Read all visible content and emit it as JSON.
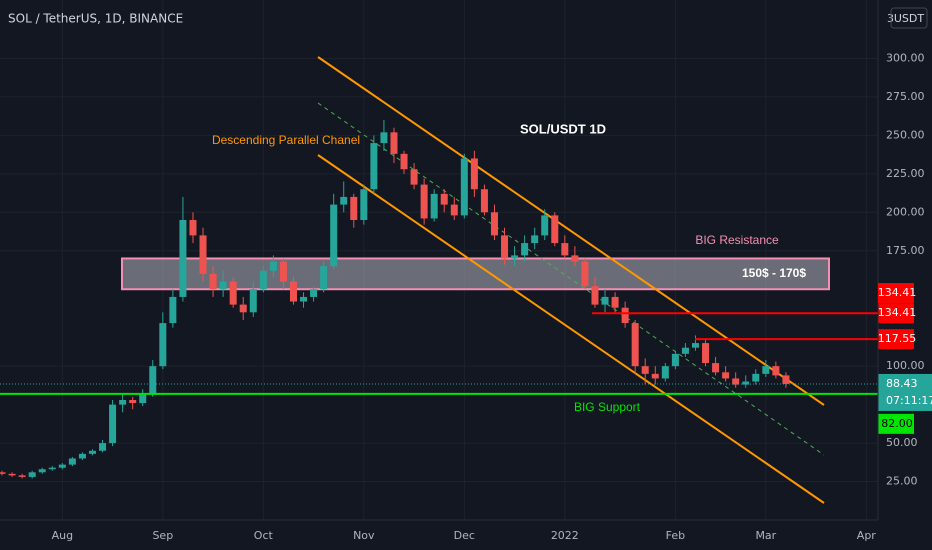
{
  "chart_data": {
    "type": "candlestick",
    "title": "SOL / TetherUS, 1D, BINANCE",
    "currency": "USDT",
    "scale_count": "3",
    "annotations": {
      "heading": "SOL/USDT 1D",
      "channel": "Descending  Parallel Chanel",
      "resistance": "BIG Resistance",
      "support": "BIG Support"
    },
    "zone": {
      "low": 150,
      "high": 170,
      "label": "150$ - 170$",
      "color": "#b2b5be",
      "border": "#f48fb1"
    },
    "levels": [
      {
        "value": 134.41,
        "label": "134.41",
        "color": "#ff0000"
      },
      {
        "value": 117.55,
        "label": "117.55",
        "color": "#ff0000"
      },
      {
        "value": 82,
        "label": "82.00",
        "color": "#00e600"
      }
    ],
    "price_badge": "134.41",
    "last_price": {
      "value": 88.43,
      "label": "88.43",
      "countdown": "07:11:17",
      "color": "#26a69a"
    },
    "up_color": "#26a69a",
    "down_color": "#ef5350",
    "categories": [
      null,
      null,
      null,
      null,
      null,
      null,
      "Aug",
      null,
      null,
      null,
      null,
      null,
      null,
      null,
      null,
      null,
      "Sep",
      null,
      null,
      null,
      null,
      null,
      null,
      null,
      null,
      null,
      "Oct",
      null,
      null,
      null,
      null,
      null,
      null,
      null,
      null,
      null,
      "Nov",
      null,
      null,
      null,
      null,
      null,
      null,
      null,
      null,
      null,
      "Dec",
      null,
      null,
      null,
      null,
      null,
      null,
      null,
      null,
      null,
      "2022",
      null,
      null,
      null,
      null,
      null,
      null,
      null,
      null,
      null,
      null,
      "Feb",
      null,
      null,
      null,
      null,
      null,
      null,
      null,
      null,
      "Mar",
      null,
      null,
      null,
      null,
      null,
      null,
      null,
      null,
      null,
      "Apr"
    ],
    "open": [
      31,
      30,
      29,
      28,
      31,
      33,
      34,
      36,
      40,
      43,
      45,
      50,
      75,
      78,
      76,
      82,
      100,
      128,
      145,
      195,
      185,
      160,
      150,
      155,
      140,
      135,
      150,
      162,
      168,
      155,
      142,
      145,
      150,
      165,
      205,
      210,
      195,
      215,
      245,
      252,
      238,
      228,
      218,
      196,
      212,
      205,
      198,
      235,
      215,
      200,
      185,
      170,
      172,
      180,
      185,
      198,
      180,
      172,
      168,
      152,
      140,
      145,
      138,
      128,
      100,
      95,
      92,
      100,
      108,
      112,
      115,
      102,
      96,
      92,
      88,
      90,
      95,
      100,
      94,
      null,
      null,
      null,
      null,
      null,
      null,
      null,
      null
    ],
    "high": [
      32,
      31,
      30,
      32,
      34,
      35,
      37,
      41,
      44,
      46,
      52,
      78,
      82,
      80,
      85,
      104,
      135,
      150,
      210,
      200,
      190,
      165,
      162,
      158,
      145,
      155,
      165,
      172,
      170,
      158,
      148,
      152,
      168,
      212,
      220,
      212,
      218,
      250,
      260,
      255,
      240,
      232,
      222,
      215,
      215,
      210,
      238,
      240,
      218,
      205,
      190,
      178,
      185,
      190,
      202,
      200,
      185,
      178,
      170,
      158,
      150,
      148,
      142,
      130,
      105,
      100,
      102,
      110,
      115,
      120,
      118,
      106,
      100,
      96,
      94,
      98,
      104,
      103,
      96,
      null,
      null,
      null,
      null,
      null,
      null,
      null,
      null
    ],
    "low": [
      29,
      28,
      27,
      27,
      30,
      32,
      33,
      35,
      39,
      42,
      44,
      48,
      70,
      72,
      74,
      80,
      98,
      125,
      142,
      180,
      155,
      145,
      145,
      138,
      130,
      132,
      148,
      158,
      150,
      140,
      138,
      142,
      148,
      163,
      200,
      190,
      192,
      212,
      240,
      232,
      225,
      215,
      192,
      194,
      200,
      195,
      196,
      210,
      198,
      182,
      166,
      165,
      168,
      176,
      182,
      178,
      170,
      165,
      150,
      138,
      135,
      135,
      125,
      95,
      88,
      88,
      90,
      98,
      106,
      110,
      100,
      94,
      90,
      86,
      86,
      88,
      93,
      92,
      86,
      null,
      null,
      null,
      null,
      null,
      null,
      null,
      null
    ],
    "close": [
      30,
      29,
      28,
      31,
      33,
      34,
      36,
      40,
      43,
      45,
      50,
      75,
      78,
      76,
      82,
      100,
      128,
      145,
      195,
      185,
      160,
      150,
      155,
      140,
      135,
      150,
      162,
      168,
      155,
      142,
      145,
      150,
      165,
      205,
      210,
      195,
      215,
      245,
      252,
      238,
      228,
      218,
      196,
      212,
      205,
      198,
      235,
      215,
      200,
      185,
      170,
      172,
      180,
      185,
      198,
      180,
      172,
      168,
      152,
      140,
      145,
      138,
      128,
      100,
      95,
      92,
      100,
      108,
      112,
      115,
      102,
      96,
      92,
      88,
      90,
      95,
      100,
      94,
      88.43,
      null,
      null,
      null,
      null,
      null,
      null,
      null,
      null
    ],
    "ylim": [
      0,
      338
    ],
    "yticks": [
      {
        "value": 25,
        "label": "25.00"
      },
      {
        "value": 50,
        "label": "50.00"
      },
      {
        "value": 100,
        "label": "100.00"
      },
      {
        "value": 175,
        "label": "175.00"
      },
      {
        "value": 200,
        "label": "200.00"
      },
      {
        "value": 225,
        "label": "225.00"
      },
      {
        "value": 250,
        "label": "250.00"
      },
      {
        "value": 275,
        "label": "275.00"
      },
      {
        "value": 300,
        "label": "300.00"
      }
    ],
    "grid": true
  }
}
